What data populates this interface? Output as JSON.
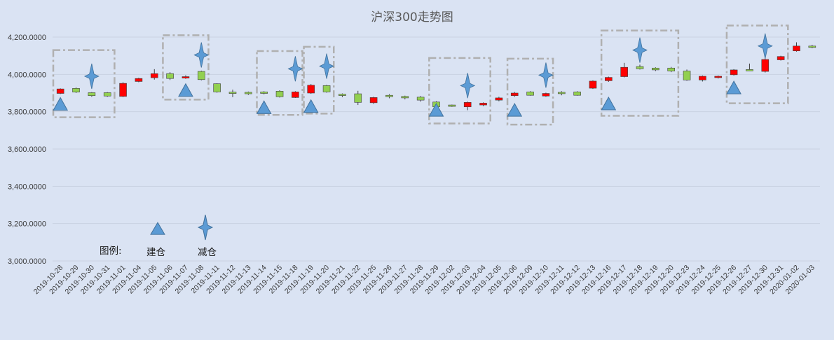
{
  "chart_data": {
    "type": "candlestick",
    "title": "沪深300走势图",
    "ylim": [
      3000,
      4200
    ],
    "y_ticks": [
      "3,000.0000",
      "3,200.0000",
      "3,400.0000",
      "3,600.0000",
      "3,800.0000",
      "4,000.0000",
      "4,200.0000"
    ],
    "y_tick_values": [
      3000,
      3200,
      3400,
      3600,
      3800,
      4000,
      4200
    ],
    "grid": true,
    "colors": {
      "up": "#ff0000",
      "down": "#92d050",
      "marker": "#5b9bd5",
      "grid": "#c9d2e2",
      "box": "#b0b0b0"
    },
    "categories": [
      "2019-10-28",
      "2019-10-29",
      "2019-10-30",
      "2019-10-31",
      "2019-11-01",
      "2019-11-04",
      "2019-11-05",
      "2019-11-06",
      "2019-11-07",
      "2019-11-08",
      "2019-11-11",
      "2019-11-12",
      "2019-11-13",
      "2019-11-14",
      "2019-11-15",
      "2019-11-18",
      "2019-11-19",
      "2019-11-20",
      "2019-11-21",
      "2019-11-22",
      "2019-11-25",
      "2019-11-26",
      "2019-11-27",
      "2019-11-28",
      "2019-11-29",
      "2019-12-02",
      "2019-12-03",
      "2019-12-04",
      "2019-12-05",
      "2019-12-06",
      "2019-12-09",
      "2019-12-10",
      "2019-12-11",
      "2019-12-12",
      "2019-12-13",
      "2019-12-16",
      "2019-12-17",
      "2019-12-18",
      "2019-12-19",
      "2019-12-20",
      "2019-12-23",
      "2019-12-24",
      "2019-12-25",
      "2019-12-26",
      "2019-12-27",
      "2019-12-30",
      "2019-12-31",
      "2020-01-02",
      "2020-01-03"
    ],
    "candles": [
      {
        "o": 3898,
        "c": 3922,
        "h": 3925,
        "l": 3895
      },
      {
        "o": 3925,
        "c": 3905,
        "h": 3930,
        "l": 3900
      },
      {
        "o": 3902,
        "c": 3886,
        "h": 3905,
        "l": 3880
      },
      {
        "o": 3902,
        "c": 3884,
        "h": 3905,
        "l": 3880
      },
      {
        "o": 3882,
        "c": 3952,
        "h": 3958,
        "l": 3878
      },
      {
        "o": 3962,
        "c": 3978,
        "h": 3982,
        "l": 3958
      },
      {
        "o": 3982,
        "c": 4004,
        "h": 4028,
        "l": 3972
      },
      {
        "o": 4004,
        "c": 3978,
        "h": 4012,
        "l": 3970
      },
      {
        "o": 3980,
        "c": 3988,
        "h": 3995,
        "l": 3976
      },
      {
        "o": 4016,
        "c": 3972,
        "h": 4020,
        "l": 3968
      },
      {
        "o": 3950,
        "c": 3906,
        "h": 3952,
        "l": 3902
      },
      {
        "o": 3905,
        "c": 3898,
        "h": 3918,
        "l": 3878
      },
      {
        "o": 3904,
        "c": 3896,
        "h": 3908,
        "l": 3890
      },
      {
        "o": 3906,
        "c": 3898,
        "h": 3910,
        "l": 3893
      },
      {
        "o": 3910,
        "c": 3880,
        "h": 3915,
        "l": 3876
      },
      {
        "o": 3876,
        "c": 3906,
        "h": 3910,
        "l": 3874
      },
      {
        "o": 3900,
        "c": 3942,
        "h": 3948,
        "l": 3896
      },
      {
        "o": 3940,
        "c": 3906,
        "h": 3944,
        "l": 3902
      },
      {
        "o": 3894,
        "c": 3888,
        "h": 3898,
        "l": 3878
      },
      {
        "o": 3896,
        "c": 3850,
        "h": 3912,
        "l": 3836
      },
      {
        "o": 3848,
        "c": 3876,
        "h": 3880,
        "l": 3842
      },
      {
        "o": 3888,
        "c": 3884,
        "h": 3894,
        "l": 3872
      },
      {
        "o": 3882,
        "c": 3874,
        "h": 3886,
        "l": 3866
      },
      {
        "o": 3878,
        "c": 3862,
        "h": 3884,
        "l": 3854
      },
      {
        "o": 3852,
        "c": 3826,
        "h": 3856,
        "l": 3800
      },
      {
        "o": 3836,
        "c": 3832,
        "h": 3838,
        "l": 3826
      },
      {
        "o": 3826,
        "c": 3850,
        "h": 3854,
        "l": 3808
      },
      {
        "o": 3836,
        "c": 3846,
        "h": 3850,
        "l": 3830
      },
      {
        "o": 3862,
        "c": 3874,
        "h": 3880,
        "l": 3856
      },
      {
        "o": 3886,
        "c": 3900,
        "h": 3906,
        "l": 3880
      },
      {
        "o": 3906,
        "c": 3888,
        "h": 3910,
        "l": 3886
      },
      {
        "o": 3884,
        "c": 3898,
        "h": 3902,
        "l": 3880
      },
      {
        "o": 3904,
        "c": 3898,
        "h": 3910,
        "l": 3888
      },
      {
        "o": 3906,
        "c": 3888,
        "h": 3910,
        "l": 3886
      },
      {
        "o": 3926,
        "c": 3964,
        "h": 3968,
        "l": 3922
      },
      {
        "o": 3966,
        "c": 3984,
        "h": 3988,
        "l": 3960
      },
      {
        "o": 3988,
        "c": 4038,
        "h": 4062,
        "l": 3984
      },
      {
        "o": 4042,
        "c": 4030,
        "h": 4052,
        "l": 4026
      },
      {
        "o": 4034,
        "c": 4024,
        "h": 4038,
        "l": 4018
      },
      {
        "o": 4034,
        "c": 4018,
        "h": 4040,
        "l": 4012
      },
      {
        "o": 4018,
        "c": 3970,
        "h": 4026,
        "l": 3966
      },
      {
        "o": 3970,
        "c": 3990,
        "h": 3994,
        "l": 3962
      },
      {
        "o": 3986,
        "c": 3990,
        "h": 3994,
        "l": 3978
      },
      {
        "o": 3998,
        "c": 4024,
        "h": 4028,
        "l": 3994
      },
      {
        "o": 4026,
        "c": 4020,
        "h": 4058,
        "l": 4018
      },
      {
        "o": 4016,
        "c": 4080,
        "h": 4086,
        "l": 4010
      },
      {
        "o": 4078,
        "c": 4096,
        "h": 4100,
        "l": 4074
      },
      {
        "o": 4126,
        "c": 4152,
        "h": 4172,
        "l": 4122
      },
      {
        "o": 4152,
        "c": 4148,
        "h": 4158,
        "l": 4140
      }
    ],
    "buy_points": [
      {
        "x": "2019-10-28",
        "y": 3838
      },
      {
        "x": "2019-11-07",
        "y": 3912
      },
      {
        "x": "2019-11-14",
        "y": 3820
      },
      {
        "x": "2019-11-19",
        "y": 3826
      },
      {
        "x": "2019-11-29",
        "y": 3806
      },
      {
        "x": "2019-12-06",
        "y": 3806
      },
      {
        "x": "2019-12-16",
        "y": 3840
      },
      {
        "x": "2019-12-26",
        "y": 3926
      }
    ],
    "sell_points": [
      {
        "x": "2019-10-30",
        "y": 3990
      },
      {
        "x": "2019-11-08",
        "y": 4104
      },
      {
        "x": "2019-11-18",
        "y": 4030
      },
      {
        "x": "2019-11-20",
        "y": 4044
      },
      {
        "x": "2019-12-03",
        "y": 3940
      },
      {
        "x": "2019-12-10",
        "y": 3996
      },
      {
        "x": "2019-12-18",
        "y": 4130
      },
      {
        "x": "2019-12-30",
        "y": 4152
      }
    ],
    "trade_boxes": [
      {
        "from": "2019-10-28",
        "to": "2019-10-31",
        "ymin": 3770,
        "ymax": 4130
      },
      {
        "from": "2019-11-06",
        "to": "2019-11-08",
        "ymin": 3865,
        "ymax": 4210
      },
      {
        "from": "2019-11-14",
        "to": "2019-11-18",
        "ymin": 3783,
        "ymax": 4125
      },
      {
        "from": "2019-11-19",
        "to": "2019-11-20",
        "ymin": 3790,
        "ymax": 4148
      },
      {
        "from": "2019-11-29",
        "to": "2019-12-04",
        "ymin": 3737,
        "ymax": 4088
      },
      {
        "from": "2019-12-06",
        "to": "2019-12-10",
        "ymin": 3731,
        "ymax": 4084
      },
      {
        "from": "2019-12-16",
        "to": "2019-12-20",
        "ymin": 3778,
        "ymax": 4235
      },
      {
        "from": "2019-12-26",
        "to": "2019-12-31",
        "ymin": 3845,
        "ymax": 4262
      }
    ]
  },
  "legend": {
    "label": "图例:",
    "buy_label": "建仓",
    "sell_label": "减仓",
    "buy_y": 3172,
    "sell_y": 3180
  }
}
